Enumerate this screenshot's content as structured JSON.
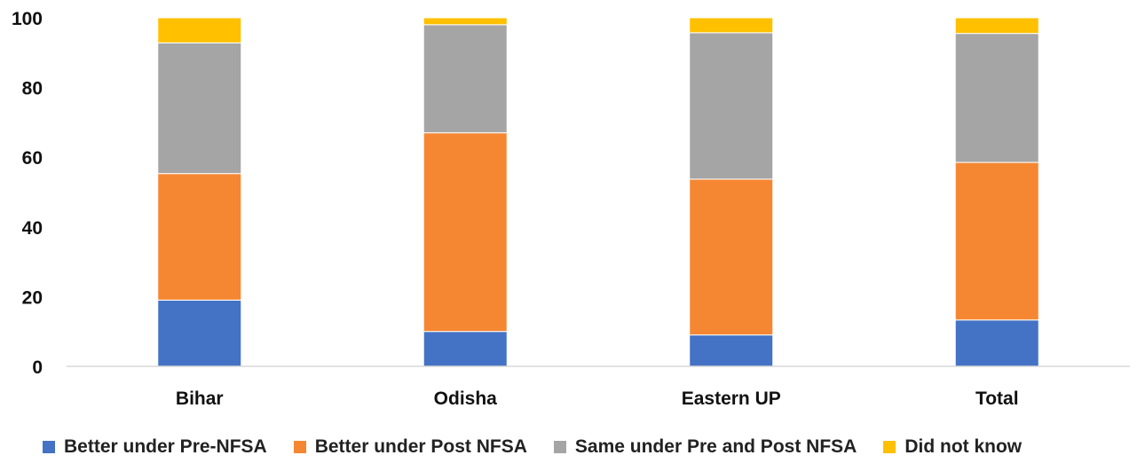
{
  "chart_data": {
    "type": "bar",
    "stacked": true,
    "title": "",
    "xlabel": "",
    "ylabel": "",
    "ylim": [
      0,
      100
    ],
    "yticks": [
      0,
      20,
      40,
      60,
      80,
      100
    ],
    "categories": [
      "Bihar",
      "Odisha",
      "Eastern UP",
      "Total"
    ],
    "series": [
      {
        "name": "Better under Pre-NFSA",
        "color": "#4472C4",
        "values": [
          19,
          10,
          9,
          13.3
        ]
      },
      {
        "name": "Better under Post NFSA",
        "color": "#F58733",
        "values": [
          36.3,
          57,
          44.7,
          45.2
        ]
      },
      {
        "name": "Same under Pre and Post NFSA",
        "color": "#A5A5A5",
        "values": [
          37.5,
          31,
          42,
          37
        ]
      },
      {
        "name": "Did not know",
        "color": "#FFC000",
        "values": [
          7.2,
          2,
          4.3,
          4.5
        ]
      }
    ],
    "legend_position": "bottom",
    "grid": false
  }
}
